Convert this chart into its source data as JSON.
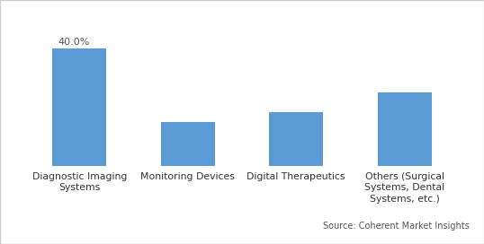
{
  "categories": [
    "Diagnostic Imaging\nSystems",
    "Monitoring Devices",
    "Digital Therapeutics",
    "Others (Surgical\nSystems, Dental\nSystems, etc.)"
  ],
  "values": [
    40.0,
    15.0,
    18.5,
    25.0
  ],
  "bar_color": "#5B9BD5",
  "label_40": "40.0%",
  "ylim": [
    0,
    50
  ],
  "source_text": "Source: Coherent Market Insights",
  "background_color": "#ffffff",
  "bar_width": 0.5,
  "border_color": "#cccccc"
}
